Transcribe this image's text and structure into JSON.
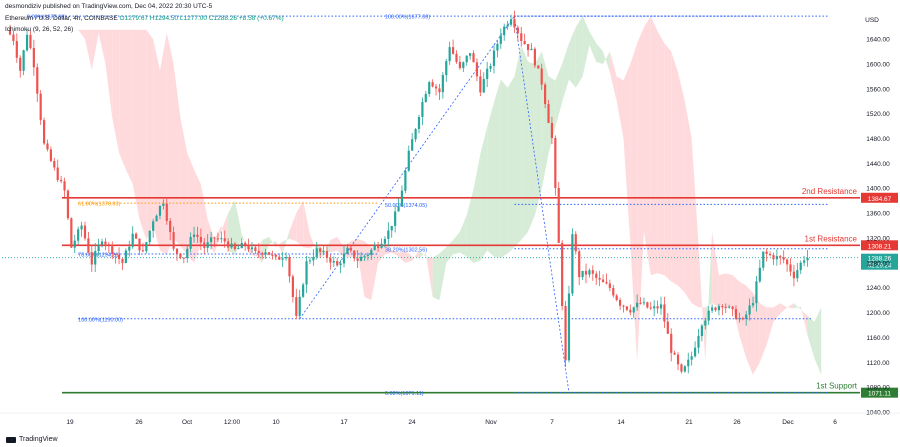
{
  "header": {
    "publisher": "desmondiziv published on TradingView.com, Dec 04, 2022 20:30 UTC-5",
    "symbol": "Ethereum / U.S. Dollar, 4h, COINBASE",
    "open": "O1279.67",
    "high": "H1294.50",
    "low": "L1277.00",
    "close": "C1288.26",
    "change": "+8.58 (+0.67%)",
    "indicator": "Ichimoku (9, 26, 52, 26)"
  },
  "footer": {
    "logo": "TradingView"
  },
  "colors": {
    "up": "#26a69a",
    "down": "#ef5350",
    "resistance": "#e53935",
    "support": "#2e7d32",
    "fib_orange": "#ff9800",
    "fib_blue": "#2962ff",
    "cloud_bull": "#c8e6c9",
    "cloud_bear": "#ffcdd2",
    "price_badge": "#26a69a"
  },
  "chart_data": {
    "type": "candlestick",
    "title": "Ethereum / U.S. Dollar, 4h, COINBASE",
    "currency": "USD",
    "ylim": [
      1040,
      1690
    ],
    "y_ticks": [
      1640,
      1600,
      1560,
      1520,
      1480,
      1440,
      1400,
      1360,
      1320,
      1280,
      1240,
      1200,
      1160,
      1120,
      1080,
      1040
    ],
    "x_ticks": [
      "19",
      "26",
      "Oct",
      "12:00",
      "10",
      "17",
      "24",
      "Nov",
      "7",
      "14",
      "21",
      "26",
      "Dec",
      "6"
    ],
    "grid": false,
    "horizontal_levels": [
      {
        "label": "2nd Resistance",
        "value": 1384.67,
        "tag": "1384.67",
        "color": "#e53935"
      },
      {
        "label": "1st Resistance",
        "value": 1308.21,
        "tag": "1308.21",
        "color": "#e53935"
      },
      {
        "label": "1st Support",
        "value": 1071.11,
        "tag": "1071.11",
        "color": "#2e7d32"
      }
    ],
    "last_price": {
      "value": 1288.26,
      "tag": "1288.26",
      "countdown": "02:29:24"
    },
    "fib_retracements": [
      {
        "label": "0.00%(1677.00)",
        "value": 1677.0,
        "color": "#2962ff"
      },
      {
        "label": "61.80%(1376.03)",
        "value": 1376.03,
        "color": "#ff9800"
      },
      {
        "label": "78.60%(1294.21)",
        "value": 1294.21,
        "color": "#2962ff"
      },
      {
        "label": "100.00%(1190.00)",
        "value": 1190.0,
        "color": "#2962ff"
      },
      {
        "label": "100.00%(1677.00)",
        "value": 1677.0,
        "color": "#2962ff"
      },
      {
        "label": "50.00%(1374.05)",
        "value": 1374.05,
        "color": "#2962ff"
      },
      {
        "label": "38.20%(1302.56)",
        "value": 1302.56,
        "color": "#2962ff"
      },
      {
        "label": "0.00%(1071.11)",
        "value": 1071.11,
        "color": "#2962ff"
      }
    ],
    "price_path": [
      [
        0,
        1655
      ],
      [
        2,
        1640
      ],
      [
        4,
        1590
      ],
      [
        6,
        1650
      ],
      [
        8,
        1600
      ],
      [
        11,
        1470
      ],
      [
        14,
        1430
      ],
      [
        17,
        1395
      ],
      [
        19,
        1305
      ],
      [
        22,
        1340
      ],
      [
        25,
        1280
      ],
      [
        28,
        1320
      ],
      [
        31,
        1300
      ],
      [
        34,
        1280
      ],
      [
        37,
        1325
      ],
      [
        40,
        1295
      ],
      [
        43,
        1350
      ],
      [
        46,
        1380
      ],
      [
        49,
        1300
      ],
      [
        52,
        1290
      ],
      [
        55,
        1330
      ],
      [
        58,
        1305
      ],
      [
        61,
        1320
      ],
      [
        64,
        1315
      ],
      [
        67,
        1300
      ],
      [
        70,
        1310
      ],
      [
        73,
        1295
      ],
      [
        76,
        1300
      ],
      [
        79,
        1285
      ],
      [
        82,
        1295
      ],
      [
        85,
        1190
      ],
      [
        88,
        1280
      ],
      [
        91,
        1300
      ],
      [
        94,
        1290
      ],
      [
        97,
        1275
      ],
      [
        100,
        1300
      ],
      [
        103,
        1285
      ],
      [
        106,
        1295
      ],
      [
        109,
        1310
      ],
      [
        112,
        1330
      ],
      [
        115,
        1370
      ],
      [
        118,
        1455
      ],
      [
        121,
        1520
      ],
      [
        124,
        1575
      ],
      [
        127,
        1555
      ],
      [
        130,
        1630
      ],
      [
        133,
        1590
      ],
      [
        136,
        1620
      ],
      [
        139,
        1560
      ],
      [
        142,
        1600
      ],
      [
        145,
        1650
      ],
      [
        148,
        1677
      ],
      [
        151,
        1640
      ],
      [
        154,
        1620
      ],
      [
        157,
        1570
      ],
      [
        160,
        1480
      ],
      [
        162,
        1310
      ],
      [
        164,
        1120
      ],
      [
        166,
        1330
      ],
      [
        168,
        1260
      ],
      [
        171,
        1265
      ],
      [
        174,
        1250
      ],
      [
        177,
        1240
      ],
      [
        180,
        1215
      ],
      [
        183,
        1205
      ],
      [
        186,
        1215
      ],
      [
        189,
        1205
      ],
      [
        192,
        1210
      ],
      [
        195,
        1140
      ],
      [
        198,
        1100
      ],
      [
        201,
        1130
      ],
      [
        204,
        1185
      ],
      [
        207,
        1205
      ],
      [
        210,
        1215
      ],
      [
        213,
        1200
      ],
      [
        216,
        1185
      ],
      [
        219,
        1220
      ],
      [
        222,
        1295
      ],
      [
        225,
        1290
      ],
      [
        228,
        1285
      ],
      [
        231,
        1260
      ],
      [
        234,
        1288
      ]
    ]
  }
}
